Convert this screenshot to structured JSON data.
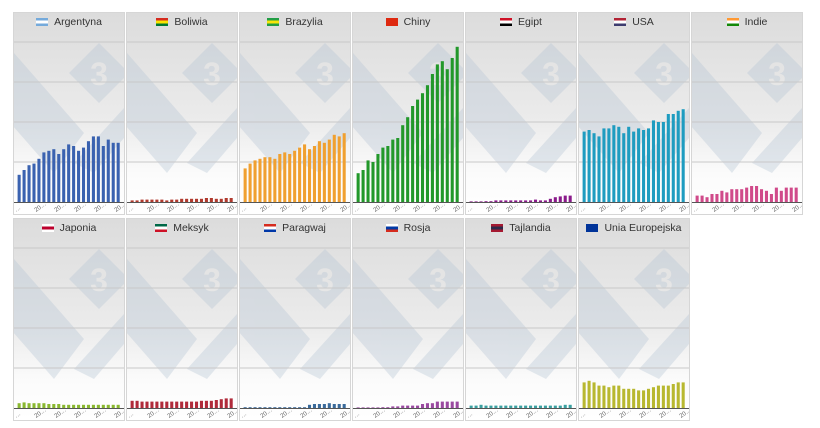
{
  "chart_data": {
    "type": "bar",
    "layout": "small multiples, 7 columns x 2 rows",
    "grid": true,
    "ylim": [
      0,
      100
    ],
    "y_tick_labels": [],
    "x_tick_labels": [
      "…",
      "20…",
      "20…",
      "20…",
      "20…",
      "20…"
    ],
    "panels": [
      {
        "title": "Argentyna",
        "flag": [
          "#75aadb",
          "#ffffff",
          "#75aadb"
        ],
        "color": "#3a62b0",
        "values": [
          17,
          20,
          23,
          24,
          27,
          31,
          32,
          33,
          30,
          33,
          36,
          35,
          32,
          34,
          38,
          41,
          41,
          35,
          39,
          37,
          37
        ]
      },
      {
        "title": "Boliwia",
        "flag": [
          "#d52b1e",
          "#f9e300",
          "#007934"
        ],
        "color": "#b03a2e",
        "values": [
          1,
          1,
          1.5,
          1.5,
          1.5,
          1.5,
          1.5,
          1,
          1.5,
          1.5,
          2,
          2,
          2,
          2,
          2,
          2.5,
          2.5,
          2,
          2,
          2.5,
          2.5
        ]
      },
      {
        "title": "Brazylia",
        "flag": [
          "#229e45",
          "#f8e509",
          "#229e45"
        ],
        "color": "#f0a030",
        "values": [
          21,
          24,
          26,
          27,
          28,
          28,
          27,
          30,
          31,
          30,
          32,
          34,
          36,
          33,
          35,
          38,
          37,
          39,
          42,
          41,
          43
        ]
      },
      {
        "title": "Chiny",
        "flag": [
          "#de2910",
          "#de2910",
          "#de2910"
        ],
        "color": "#22982a",
        "values": [
          18,
          20,
          26,
          25,
          30,
          34,
          35,
          39,
          40,
          48,
          53,
          60,
          64,
          68,
          73,
          80,
          86,
          88,
          83,
          90,
          97
        ]
      },
      {
        "title": "Egipt",
        "flag": [
          "#ce1126",
          "#ffffff",
          "#000000"
        ],
        "color": "#8a1a8a",
        "values": [
          0,
          0,
          0,
          0.5,
          0.5,
          1,
          1,
          1,
          1,
          1,
          1,
          1,
          1,
          1.5,
          1,
          1,
          2,
          3,
          3.5,
          4,
          4
        ]
      },
      {
        "title": "USA",
        "flag": [
          "#b22234",
          "#ffffff",
          "#3c3b6e"
        ],
        "color": "#1e9cc0",
        "values": [
          44,
          45,
          43,
          41,
          46,
          46,
          48,
          47,
          43,
          47,
          44,
          46,
          45,
          46,
          51,
          50,
          50,
          55,
          55,
          57,
          58
        ]
      },
      {
        "title": "Indie",
        "flag": [
          "#ff9933",
          "#ffffff",
          "#138808"
        ],
        "color": "#d04a8a",
        "values": [
          4,
          4,
          3,
          5,
          5,
          7,
          6,
          8,
          8,
          8,
          9,
          10,
          10,
          8,
          7,
          5,
          9,
          7,
          9,
          9,
          9
        ]
      },
      {
        "title": "Japonia",
        "flag": [
          "#ffffff",
          "#bc002d",
          "#ffffff"
        ],
        "color": "#8ab830",
        "values": [
          3,
          3.5,
          3,
          3,
          3,
          3,
          2.5,
          2.5,
          2.5,
          2,
          2,
          2,
          2,
          2,
          2,
          2,
          2,
          2,
          2,
          2,
          2
        ]
      },
      {
        "title": "Meksyk",
        "flag": [
          "#006847",
          "#ffffff",
          "#ce1126"
        ],
        "color": "#b02a3a",
        "values": [
          4.5,
          4.5,
          4,
          4,
          4,
          4,
          4,
          4,
          4,
          4,
          4,
          4,
          4,
          4,
          4.5,
          4.5,
          4.5,
          5,
          5.5,
          6,
          6
        ]
      },
      {
        "title": "Paragwaj",
        "flag": [
          "#d52b1e",
          "#ffffff",
          "#0038a8"
        ],
        "color": "#3a6a9a",
        "values": [
          0.5,
          0.5,
          0.5,
          0.5,
          0.5,
          0.5,
          0.5,
          0.5,
          0.5,
          0.5,
          0.5,
          0.5,
          0.5,
          2,
          2.5,
          2.5,
          2.5,
          3,
          2.5,
          2.5,
          2.5
        ]
      },
      {
        "title": "Rosja",
        "flag": [
          "#ffffff",
          "#0039a6",
          "#d52b1e"
        ],
        "color": "#9a4aa0",
        "values": [
          0,
          0,
          0,
          0,
          0.3,
          0.5,
          0.5,
          1,
          1,
          1.5,
          1.5,
          1.5,
          1.5,
          2.5,
          3,
          3,
          4,
          4,
          4,
          4,
          4
        ]
      },
      {
        "title": "Tajlandia",
        "flag": [
          "#a51931",
          "#2d2a4a",
          "#a51931"
        ],
        "color": "#3aa0a0",
        "values": [
          1.5,
          1.5,
          2,
          1.5,
          1.5,
          1.5,
          1.5,
          1.5,
          1.5,
          1.5,
          1.5,
          1.5,
          1.5,
          1.5,
          1.5,
          1.5,
          1.5,
          1.5,
          1.5,
          2,
          2
        ]
      },
      {
        "title": "Unia Europejska",
        "flag": [
          "#003399",
          "#003399",
          "#003399"
        ],
        "color": "#b8b830",
        "values": [
          16,
          17,
          16,
          14,
          14,
          13,
          14,
          14,
          12,
          12,
          12,
          11,
          11,
          12,
          13,
          14,
          14,
          14,
          15,
          16,
          16
        ]
      }
    ]
  }
}
